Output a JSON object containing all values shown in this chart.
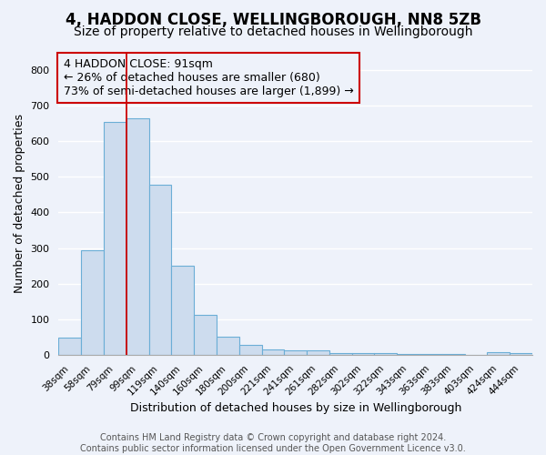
{
  "title": "4, HADDON CLOSE, WELLINGBOROUGH, NN8 5ZB",
  "subtitle": "Size of property relative to detached houses in Wellingborough",
  "xlabel": "Distribution of detached houses by size in Wellingborough",
  "ylabel": "Number of detached properties",
  "bar_labels": [
    "38sqm",
    "58sqm",
    "79sqm",
    "99sqm",
    "119sqm",
    "140sqm",
    "160sqm",
    "180sqm",
    "200sqm",
    "221sqm",
    "241sqm",
    "261sqm",
    "282sqm",
    "302sqm",
    "322sqm",
    "343sqm",
    "363sqm",
    "383sqm",
    "403sqm",
    "424sqm",
    "444sqm"
  ],
  "bar_values": [
    48,
    295,
    655,
    665,
    478,
    250,
    113,
    50,
    27,
    15,
    12,
    12,
    5,
    5,
    5,
    2,
    2,
    2,
    0,
    8,
    5
  ],
  "bar_color": "#cddcee",
  "bar_edge_color": "#6baed6",
  "vline_x": 3.0,
  "vline_color": "#cc0000",
  "annotation_line1": "4 HADDON CLOSE: 91sqm",
  "annotation_line2": "← 26% of detached houses are smaller (680)",
  "annotation_line3": "73% of semi-detached houses are larger (1,899) →",
  "annotation_box_color": "#cc0000",
  "ylim": [
    0,
    850
  ],
  "yticks": [
    0,
    100,
    200,
    300,
    400,
    500,
    600,
    700,
    800
  ],
  "background_color": "#eef2fa",
  "footer_line1": "Contains HM Land Registry data © Crown copyright and database right 2024.",
  "footer_line2": "Contains public sector information licensed under the Open Government Licence v3.0.",
  "title_fontsize": 12,
  "subtitle_fontsize": 10,
  "xlabel_fontsize": 9,
  "ylabel_fontsize": 9,
  "annotation_fontsize": 9,
  "footer_fontsize": 7
}
